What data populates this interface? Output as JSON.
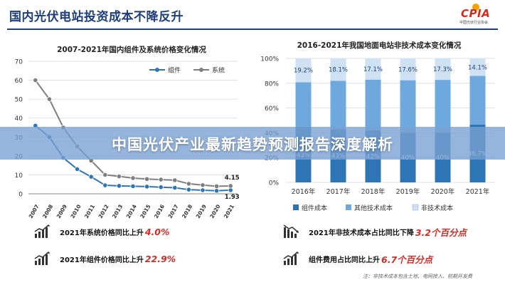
{
  "header": {
    "title": "国内光伏电站投资成本不降反升",
    "logo_text": "CPIA",
    "logo_sub": "中国光伏行业协会"
  },
  "banner": {
    "text": "中国光伏产业最新趋势预测报告深度解析"
  },
  "stats_left": [
    {
      "label": "2021年系统价格同比上升",
      "value": "4.0%",
      "icon": "rising-trend-icon"
    },
    {
      "label": "2021年组件价格同比上升",
      "value": "22.9%",
      "icon": "rising-trend-icon"
    }
  ],
  "stats_right": [
    {
      "label": "2021年非技术成本占比同比下降",
      "value": "3.2个百分点",
      "icon": "falling-trend-icon"
    },
    {
      "label": "组件费用占比同比上升",
      "value": "6.7个百分点",
      "icon": "rising-trend-icon"
    }
  ],
  "footnote": "注：非技术成本包含土地、电网接入、前期开发费",
  "colors": {
    "title_blue": "#1f3f7a",
    "module_line": "#2e75b6",
    "system_line": "#7f7f7f",
    "module_bar": "#2e75b6",
    "other_tech_bar": "#6fa8dc",
    "non_tech_bar": "#cfe2f3",
    "highlight_red": "#d62b24"
  },
  "chart_data": [
    {
      "type": "line",
      "title": "2007-2021年国内组件及系统价格变化情况",
      "x": [
        "2007",
        "2008",
        "2009",
        "2010",
        "2011",
        "2012",
        "2013",
        "2014",
        "2015",
        "2016",
        "2017",
        "2018",
        "2019",
        "2020",
        "2021"
      ],
      "series": [
        {
          "name": "组件",
          "values": [
            36,
            30,
            19,
            13,
            9,
            4.5,
            4.2,
            4.0,
            3.8,
            3.5,
            3.2,
            2.2,
            1.9,
            1.6,
            1.93
          ]
        },
        {
          "name": "系统",
          "values": [
            60,
            50,
            35,
            25,
            17.5,
            10,
            9.2,
            8.3,
            7.8,
            7.5,
            7.2,
            5.3,
            4.6,
            4.0,
            4.15
          ]
        }
      ],
      "annotations": [
        {
          "series": "系统",
          "x": "2021",
          "text": "4.15"
        },
        {
          "series": "组件",
          "x": "2021",
          "text": "1.93"
        }
      ],
      "ylim": [
        0,
        70
      ],
      "yticks": [
        0,
        10,
        20,
        30,
        40,
        50,
        60,
        70
      ],
      "grid": true,
      "legend": "top-right"
    },
    {
      "type": "bar",
      "stacked": true,
      "title": "2016-2021年我国地面电站非技术成本变化情况",
      "categories": [
        "2016年",
        "2017年",
        "2018年",
        "2019年",
        "2020年",
        "2021年"
      ],
      "series": [
        {
          "name": "组件成本",
          "values": [
            45,
            43,
            42,
            40,
            40,
            46.7
          ]
        },
        {
          "name": "其他技术成本",
          "values": [
            35.8,
            38.9,
            40.9,
            42.4,
            42.7,
            39.2
          ]
        },
        {
          "name": "非技术成本",
          "values": [
            19.2,
            18.1,
            17.1,
            17.6,
            17.3,
            14.1
          ]
        }
      ],
      "labels": {
        "非技术成本": [
          "19.2%",
          "18.1%",
          "17.1%",
          "17.6%",
          "17.3%",
          "14.1%"
        ],
        "组件成本": [
          "45%",
          "43%",
          "42%",
          "40%",
          "40%",
          "46.7%"
        ]
      },
      "ylim": [
        0,
        100
      ],
      "yticks": [
        "0%",
        "20%",
        "40%",
        "60%",
        "80%",
        "100%"
      ],
      "grid": true,
      "legend": "bottom"
    }
  ]
}
